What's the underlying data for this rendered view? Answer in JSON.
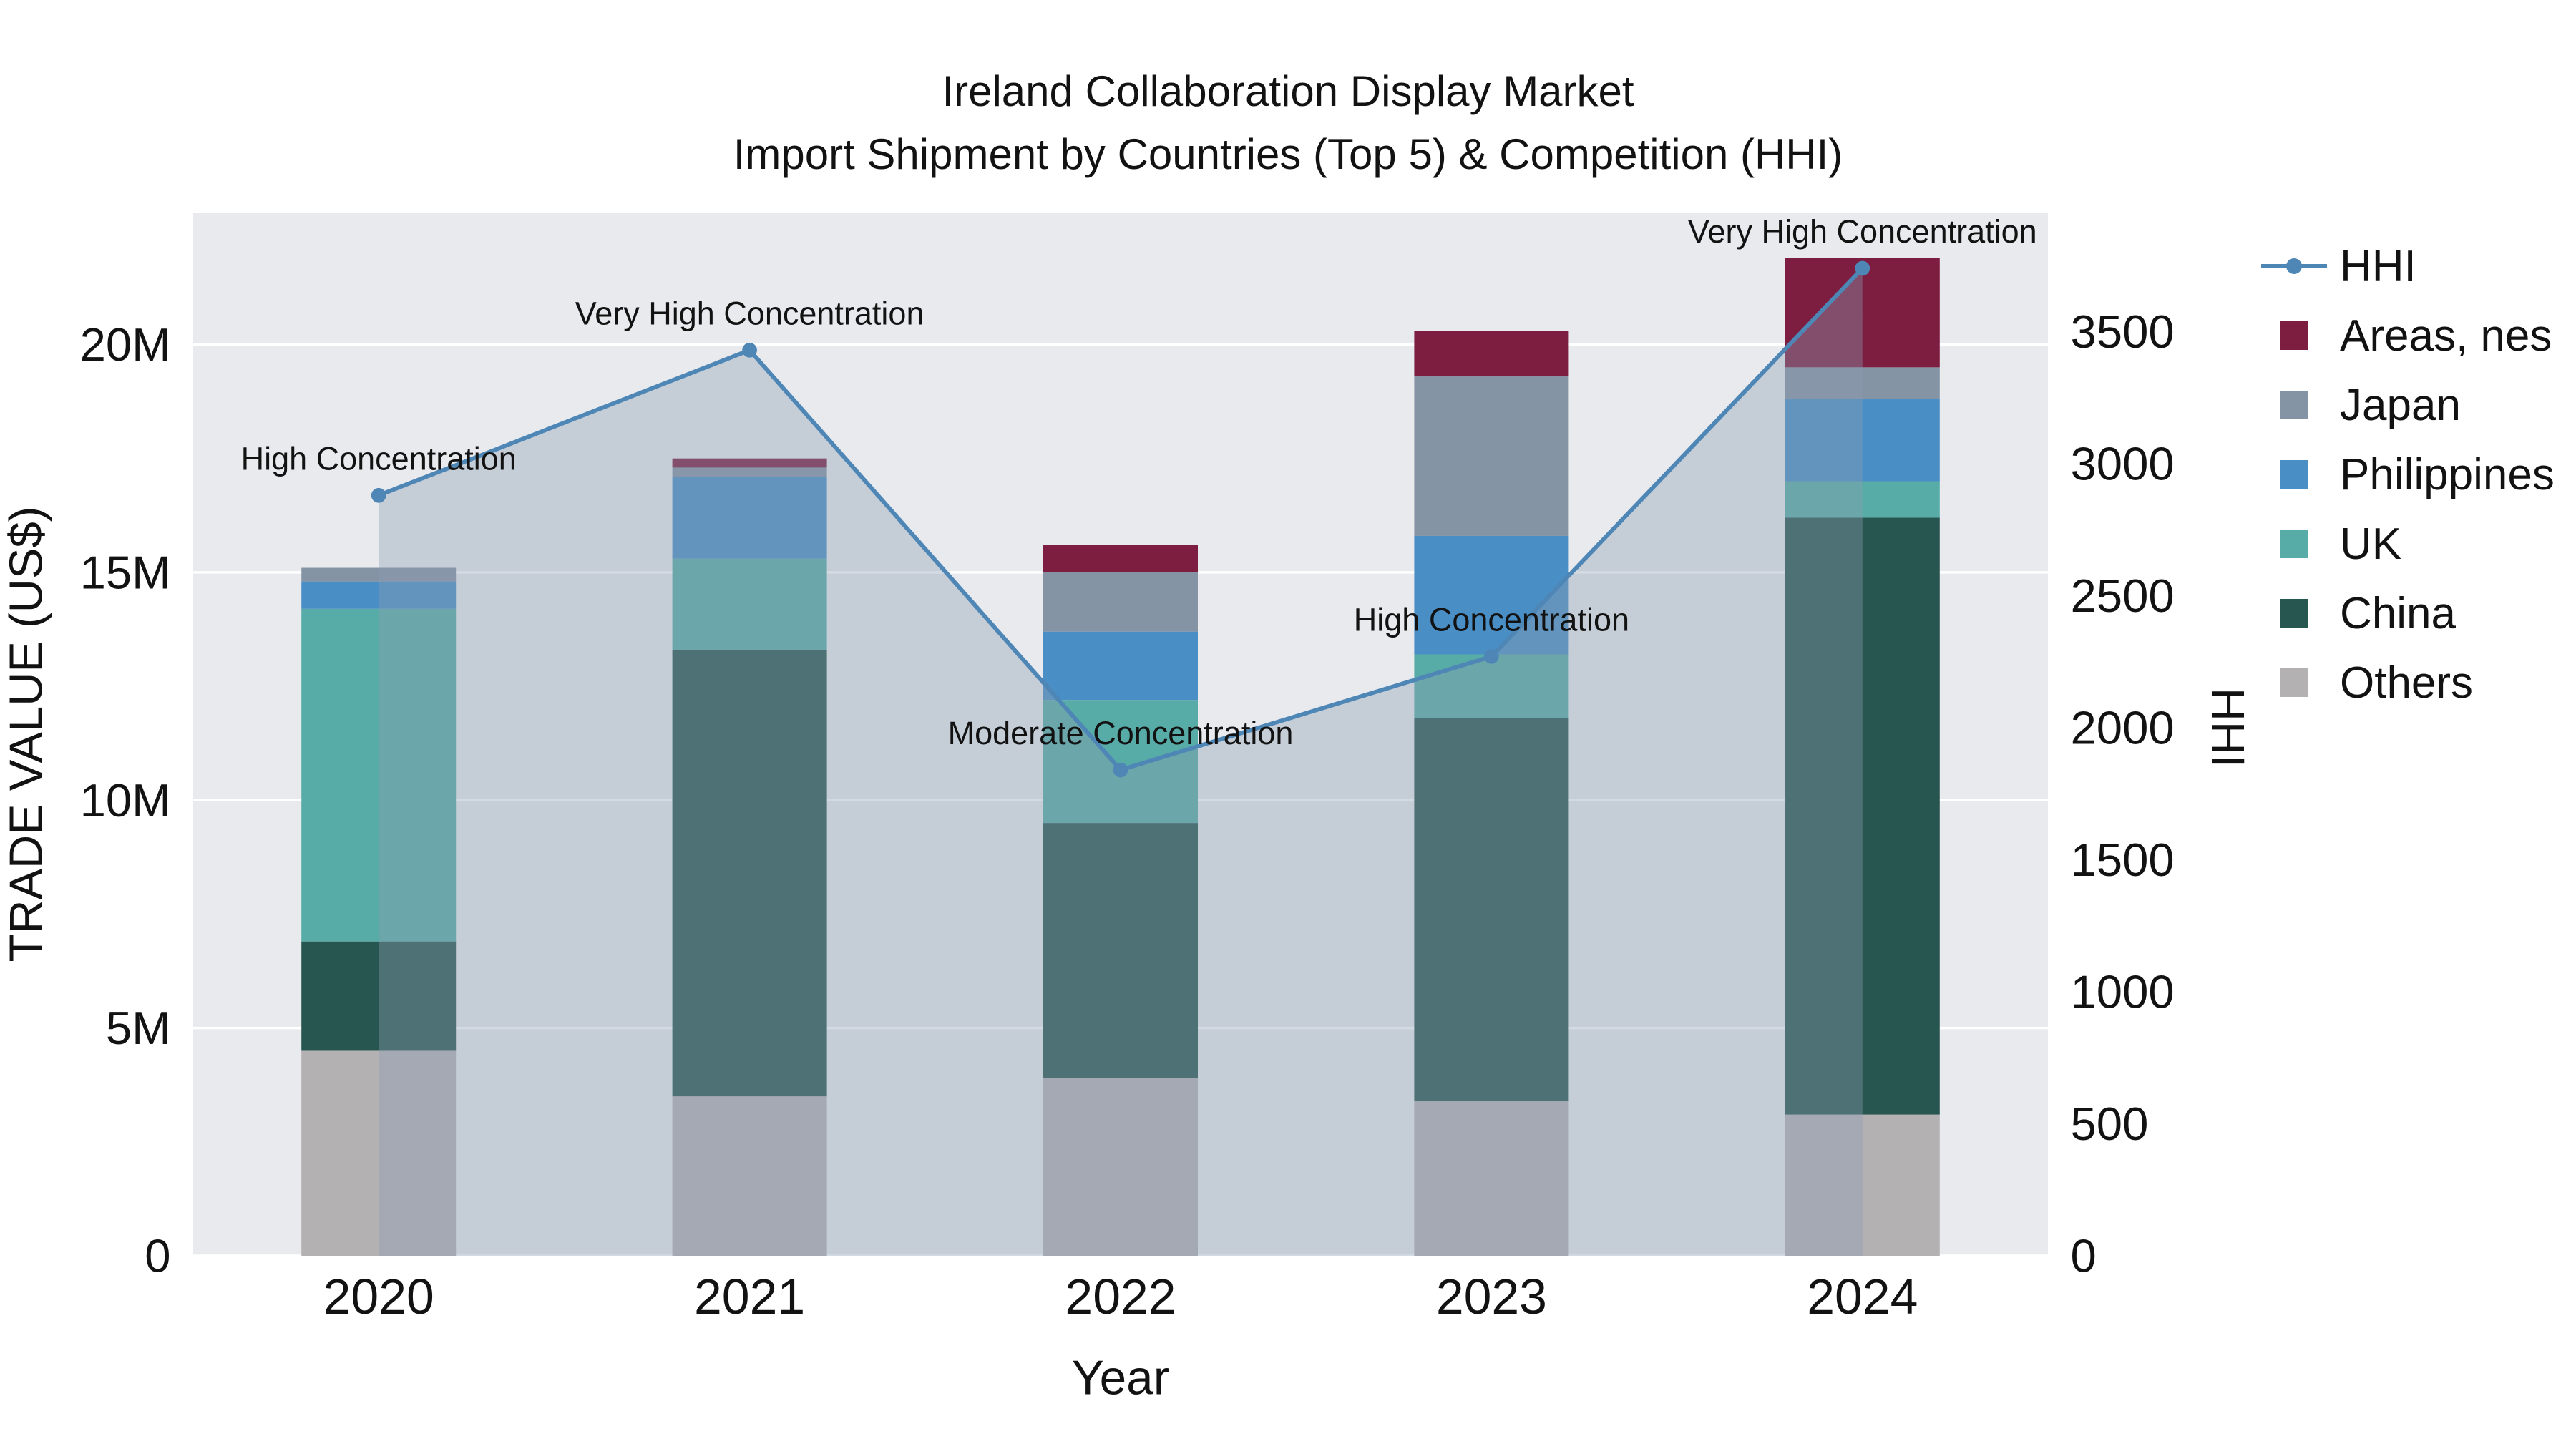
{
  "title": {
    "line1": "Ireland Collaboration Display Market",
    "line2": "Import Shipment by Countries (Top 5) & Competition (HHI)"
  },
  "legend": {
    "items": [
      {
        "label": "HHI",
        "color": "#4e86b6",
        "type": "line"
      },
      {
        "label": "Areas, nes",
        "color": "#7d1e40",
        "type": "square"
      },
      {
        "label": "Japan",
        "color": "#8594a4",
        "type": "square"
      },
      {
        "label": "Philippines",
        "color": "#4a8ec6",
        "type": "square"
      },
      {
        "label": "UK",
        "color": "#57aca7",
        "type": "square"
      },
      {
        "label": "China",
        "color": "#275650",
        "type": "square"
      },
      {
        "label": "Others",
        "color": "#b4b1b3",
        "type": "square"
      }
    ]
  },
  "chart_data": {
    "type": "bar",
    "stacked": true,
    "title": "Ireland Collaboration Display Market — Import Shipment by Countries (Top 5) & Competition (HHI)",
    "categories": [
      "2020",
      "2021",
      "2022",
      "2023",
      "2024"
    ],
    "value_unit": "Million US$",
    "series": [
      {
        "name": "Others",
        "color": "#b4b1b3",
        "values": [
          4.5,
          3.5,
          3.9,
          3.4,
          3.1
        ]
      },
      {
        "name": "China",
        "color": "#275650",
        "values": [
          2.4,
          9.8,
          5.6,
          8.4,
          13.1
        ]
      },
      {
        "name": "UK",
        "color": "#57aca7",
        "values": [
          7.3,
          2.0,
          2.7,
          1.4,
          0.8
        ]
      },
      {
        "name": "Philippines",
        "color": "#4a8ec6",
        "values": [
          0.6,
          1.8,
          1.5,
          2.6,
          1.8
        ]
      },
      {
        "name": "Japan",
        "color": "#8594a4",
        "values": [
          0.3,
          0.2,
          1.3,
          3.5,
          0.7
        ]
      },
      {
        "name": "Areas, nes",
        "color": "#7d1e40",
        "values": [
          0.0,
          0.2,
          0.6,
          1.0,
          2.4
        ]
      }
    ],
    "totals": [
      15.1,
      17.5,
      15.6,
      20.3,
      21.9
    ],
    "line": {
      "name": "HHI",
      "axis": "right",
      "color": "#4e86b6",
      "values": [
        2880,
        3430,
        1840,
        2270,
        3740
      ],
      "annotations": [
        "High Concentration",
        "Very High Concentration",
        "Moderate Concentration",
        "High Concentration",
        "Very High Concentration"
      ],
      "area_fill": "rgba(140,157,180,0.38)"
    },
    "x_label": "Year",
    "y_left": {
      "label": "TRADE VALUE (US$)",
      "ticks": [
        0,
        5,
        10,
        15,
        20
      ],
      "tick_labels": [
        "0",
        "5M",
        "10M",
        "15M",
        "20M"
      ],
      "max": 22.9
    },
    "y_right": {
      "label": "HHI",
      "ticks": [
        0,
        500,
        1000,
        1500,
        2000,
        2500,
        3000,
        3500
      ],
      "max": 3960
    },
    "plot_bg": "#e9eaee",
    "grid_color": "#ffffff",
    "grid": true,
    "legend_position": "right"
  }
}
